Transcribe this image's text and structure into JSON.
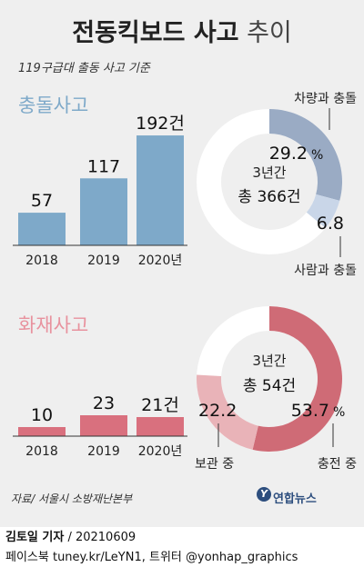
{
  "title": {
    "bold": "전동킥보드 사고",
    "thin": "추이"
  },
  "subtitle": "119구급대 출동 사고 기준",
  "collision": {
    "section_title": "충돌사고",
    "chart_data": {
      "type": "bar",
      "categories": [
        "2018",
        "2019",
        "2020년"
      ],
      "values": [
        57,
        117,
        192
      ],
      "value_labels": [
        "57",
        "117",
        "192건"
      ],
      "color": "#7ea9c9"
    },
    "donut": {
      "type": "pie",
      "center_line1": "3년간",
      "center_line2": "총 366건",
      "slices": [
        {
          "name": "차량과 충돌",
          "value_label": "29.2",
          "unit": "%",
          "value": 29.2,
          "color": "#9aabc4"
        },
        {
          "name": "사람과 충돌",
          "value_label": "6.8",
          "value": 6.8,
          "color": "#c9d6e8"
        }
      ],
      "rest_color": "#ffffff"
    }
  },
  "fire": {
    "section_title": "화재사고",
    "chart_data": {
      "type": "bar",
      "categories": [
        "2018",
        "2019",
        "2020년"
      ],
      "values": [
        10,
        23,
        21
      ],
      "value_labels": [
        "10",
        "23",
        "21건"
      ],
      "color": "#d9707e"
    },
    "donut": {
      "type": "pie",
      "center_line1": "3년간",
      "center_line2": "총 54건",
      "slices": [
        {
          "name": "충전 중",
          "value_label": "53.7",
          "unit": "%",
          "value": 53.7,
          "color": "#cf6b76"
        },
        {
          "name": "보관 중",
          "value_label": "22.2",
          "value": 22.2,
          "color": "#e9b3b8"
        }
      ],
      "rest_color": "#ffffff"
    }
  },
  "source": "자료/ 서울시 소방재난본부",
  "brand": "연합뉴스",
  "brand_logo": "Y",
  "credit": {
    "name": "김토일 기자",
    "date": " / 20210609"
  },
  "social": "페이스북 tuney.kr/LeYN1, 트위터 @yonhap_graphics"
}
